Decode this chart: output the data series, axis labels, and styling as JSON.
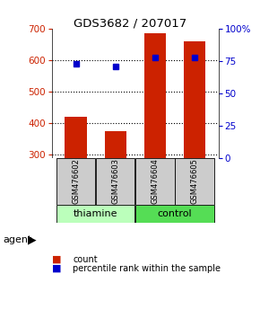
{
  "title": "GDS3682 / 207017",
  "samples": [
    "GSM476602",
    "GSM476603",
    "GSM476604",
    "GSM476605"
  ],
  "counts": [
    420,
    375,
    685,
    660
  ],
  "percentiles": [
    73,
    71,
    78,
    78
  ],
  "bar_bottom": 290,
  "left_ylim": [
    290,
    700
  ],
  "right_ylim": [
    0,
    100
  ],
  "left_yticks": [
    300,
    400,
    500,
    600,
    700
  ],
  "right_yticks": [
    0,
    25,
    50,
    75,
    100
  ],
  "right_yticklabels": [
    "0",
    "25",
    "50",
    "75",
    "100%"
  ],
  "bar_color": "#cc2200",
  "dot_color": "#0000cc",
  "group_labels": [
    "thiamine",
    "control"
  ],
  "group_ranges": [
    [
      0,
      2
    ],
    [
      2,
      4
    ]
  ],
  "group_colors_light": [
    "#bbffbb",
    "#55dd55"
  ],
  "sample_box_color": "#cccccc",
  "agent_label": "agent",
  "legend_count_label": "count",
  "legend_pct_label": "percentile rank within the sample",
  "bar_color_hex": "#cc2200",
  "dot_color_hex": "#0000cc",
  "left_tick_color": "#cc2200",
  "right_tick_color": "#0000cc",
  "grid_ticks": [
    300,
    400,
    500,
    600
  ],
  "bar_width": 0.55
}
